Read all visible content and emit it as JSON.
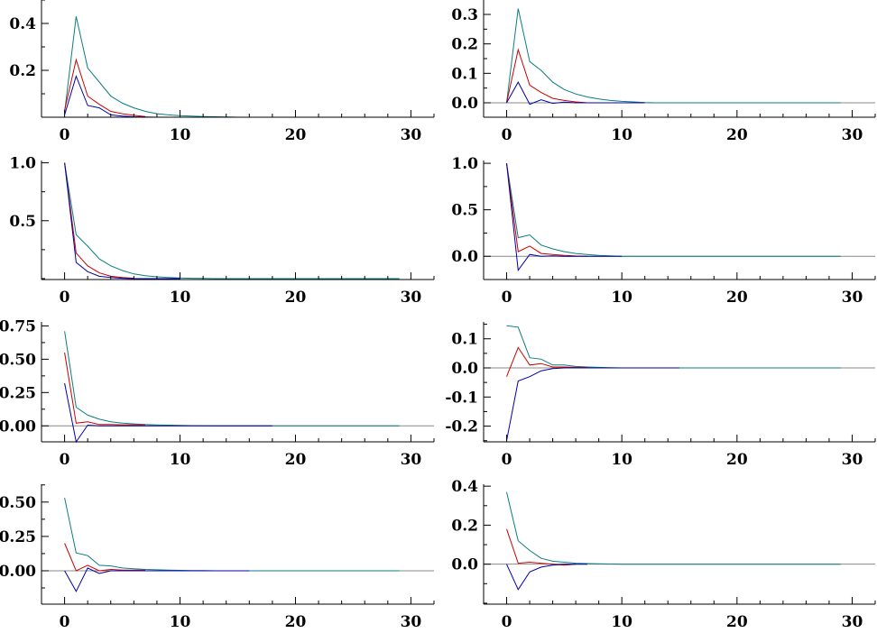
{
  "chart_data": [
    {
      "type": "line",
      "xlim": [
        -2,
        32
      ],
      "ylim": [
        0.0,
        0.5
      ],
      "xticks": [
        0,
        10,
        20,
        30
      ],
      "yticks": [
        0.2,
        0.4
      ],
      "ytick_labels": [
        "0.2",
        "0.4"
      ],
      "zero_line": false,
      "series": [
        {
          "name": "teal",
          "color": "#0a7d7d",
          "values": [
            0.02,
            0.43,
            0.21,
            0.15,
            0.09,
            0.06,
            0.04,
            0.025,
            0.015,
            0.01,
            0.007,
            0.005,
            0.003,
            0.002,
            0.001,
            0,
            0,
            0,
            0,
            0,
            0,
            0,
            0,
            0,
            0,
            0,
            0,
            0,
            0,
            0
          ]
        },
        {
          "name": "red",
          "color": "#cc0000",
          "values": [
            0.03,
            0.245,
            0.09,
            0.055,
            0.025,
            0.015,
            0.008,
            0.003
          ]
        },
        {
          "name": "blue",
          "color": "#0000aa",
          "values": [
            0.01,
            0.175,
            0.05,
            0.04,
            0.01,
            0.005,
            0.002,
            0.001,
            0,
            0,
            0,
            0,
            0,
            0,
            0,
            0
          ]
        }
      ]
    },
    {
      "type": "line",
      "xlim": [
        -2,
        32
      ],
      "ylim": [
        -0.049,
        0.349
      ],
      "xticks": [
        0,
        10,
        20,
        30
      ],
      "yticks": [
        0.0,
        0.1,
        0.2,
        0.3
      ],
      "ytick_labels": [
        "0.0",
        "0.1",
        "0.2",
        "0.3"
      ],
      "zero_line": true,
      "series": [
        {
          "name": "teal",
          "color": "#0a7d7d",
          "values": [
            0,
            0.32,
            0.14,
            0.11,
            0.07,
            0.045,
            0.03,
            0.02,
            0.013,
            0.008,
            0.005,
            0.003,
            0.001,
            0,
            0,
            0,
            0,
            0,
            0,
            0,
            0,
            0,
            0,
            0,
            0,
            0,
            0,
            0,
            0,
            0
          ]
        },
        {
          "name": "red",
          "color": "#cc0000",
          "values": [
            0,
            0.18,
            0.06,
            0.035,
            0.015,
            0.008,
            0.003,
            0
          ]
        },
        {
          "name": "blue",
          "color": "#0000aa",
          "values": [
            0,
            0.07,
            -0.005,
            0.01,
            -0.002,
            0.002,
            0,
            0,
            0,
            0,
            0,
            0,
            0
          ]
        }
      ]
    },
    {
      "type": "line",
      "xlim": [
        -2,
        32
      ],
      "ylim": [
        -0.008,
        1.02
      ],
      "xticks": [
        0,
        10,
        20,
        30
      ],
      "yticks": [
        0.5,
        1.0
      ],
      "ytick_labels": [
        "0.5",
        "1.0"
      ],
      "zero_line": false,
      "series": [
        {
          "name": "teal",
          "color": "#0a7d7d",
          "values": [
            1.0,
            0.38,
            0.28,
            0.17,
            0.11,
            0.07,
            0.04,
            0.025,
            0.015,
            0.01,
            0.005,
            0.003,
            0.001,
            0,
            0,
            0,
            0,
            0,
            0,
            0,
            0,
            0,
            0,
            0,
            0,
            0,
            0,
            0,
            0,
            0
          ]
        },
        {
          "name": "red",
          "color": "#cc0000",
          "values": [
            1.0,
            0.22,
            0.11,
            0.05,
            0.02,
            0.01,
            0.003
          ]
        },
        {
          "name": "blue",
          "color": "#0000aa",
          "values": [
            1.0,
            0.14,
            0.06,
            0.02,
            0.01,
            0.003,
            0,
            0,
            0,
            0,
            0
          ]
        }
      ]
    },
    {
      "type": "line",
      "xlim": [
        -2,
        32
      ],
      "ylim": [
        -0.25,
        1.03
      ],
      "xticks": [
        0,
        10,
        20,
        30
      ],
      "yticks": [
        0.0,
        0.5,
        1.0
      ],
      "ytick_labels": [
        "0.0",
        "0.5",
        "1.0"
      ],
      "zero_line": true,
      "series": [
        {
          "name": "teal",
          "color": "#0a7d7d",
          "values": [
            1.0,
            0.2,
            0.23,
            0.12,
            0.08,
            0.05,
            0.03,
            0.02,
            0.01,
            0.005,
            0,
            0,
            0,
            0,
            0,
            0,
            0,
            0,
            0,
            0,
            0,
            0,
            0,
            0,
            0,
            0,
            0,
            0,
            0,
            0
          ]
        },
        {
          "name": "red",
          "color": "#cc0000",
          "values": [
            1.0,
            0.05,
            0.11,
            0.03,
            0.02,
            0.01,
            0.003,
            0
          ]
        },
        {
          "name": "blue",
          "color": "#0000aa",
          "values": [
            1.0,
            -0.15,
            0.02,
            0.0,
            0.005,
            0,
            0,
            0,
            0,
            0,
            0
          ]
        }
      ]
    },
    {
      "type": "line",
      "xlim": [
        -2,
        32
      ],
      "ylim": [
        -0.12,
        0.78
      ],
      "xticks": [
        0,
        10,
        20,
        30
      ],
      "yticks": [
        0.0,
        0.25,
        0.5,
        0.75
      ],
      "ytick_labels": [
        "0.00",
        "0.25",
        "0.50",
        "0.75"
      ],
      "zero_line": true,
      "series": [
        {
          "name": "teal",
          "color": "#0a7d7d",
          "values": [
            0.71,
            0.14,
            0.08,
            0.05,
            0.03,
            0.02,
            0.015,
            0.01,
            0.007,
            0.005,
            0.003,
            0.002,
            0.001,
            0,
            0,
            0,
            0,
            0,
            0,
            0,
            0,
            0,
            0,
            0,
            0,
            0,
            0,
            0,
            0,
            0
          ]
        },
        {
          "name": "red",
          "color": "#cc0000",
          "values": [
            0.55,
            0.02,
            0.03,
            0.01,
            0.01,
            0.008,
            0.008,
            0.008
          ]
        },
        {
          "name": "blue",
          "color": "#0000aa",
          "values": [
            0.32,
            -0.12,
            0.005,
            0,
            0,
            0,
            0,
            0,
            0,
            0,
            0,
            0,
            0,
            0,
            0,
            0,
            0,
            0,
            0
          ]
        }
      ]
    },
    {
      "type": "line",
      "xlim": [
        -2,
        32
      ],
      "ylim": [
        -0.254,
        0.158
      ],
      "xticks": [
        0,
        10,
        20,
        30
      ],
      "yticks": [
        -0.2,
        -0.1,
        0.0,
        0.1
      ],
      "ytick_labels": [
        "-0.2",
        "-0.1",
        "0.0",
        "0.1"
      ],
      "zero_line": true,
      "series": [
        {
          "name": "teal",
          "color": "#0a7d7d",
          "values": [
            0.145,
            0.14,
            0.035,
            0.03,
            0.01,
            0.01,
            0.005,
            0.003,
            0.002,
            0.001,
            0,
            0,
            0,
            0,
            0,
            0,
            0,
            0,
            0,
            0,
            0,
            0,
            0,
            0,
            0,
            0,
            0,
            0,
            0,
            0
          ]
        },
        {
          "name": "red",
          "color": "#cc0000",
          "values": [
            -0.03,
            0.07,
            0.01,
            0.015,
            0.003,
            0.003,
            0.002,
            0.002
          ]
        },
        {
          "name": "blue",
          "color": "#0000aa",
          "values": [
            -0.25,
            -0.045,
            -0.03,
            -0.01,
            -0.002,
            0,
            0,
            0,
            0,
            0,
            0,
            0,
            0,
            0,
            0,
            0
          ]
        }
      ]
    },
    {
      "type": "line",
      "xlim": [
        -2,
        32
      ],
      "ylim": [
        -0.243,
        0.63
      ],
      "xticks": [
        0,
        10,
        20,
        30
      ],
      "yticks": [
        0.0,
        0.25,
        0.5
      ],
      "ytick_labels": [
        "0.00",
        "0.25",
        "0.50"
      ],
      "zero_line": true,
      "series": [
        {
          "name": "teal",
          "color": "#0a7d7d",
          "values": [
            0.53,
            0.13,
            0.11,
            0.04,
            0.035,
            0.02,
            0.015,
            0.01,
            0.007,
            0.005,
            0.003,
            0.002,
            0.001,
            0,
            0,
            0,
            0,
            0,
            0,
            0,
            0,
            0,
            0,
            0,
            0,
            0,
            0,
            0,
            0,
            0
          ]
        },
        {
          "name": "red",
          "color": "#cc0000",
          "values": [
            0.2,
            0,
            0.04,
            0,
            0.01,
            0.005,
            0.005,
            0.005
          ]
        },
        {
          "name": "blue",
          "color": "#0000aa",
          "values": [
            0,
            -0.15,
            0.02,
            -0.02,
            0,
            0,
            0,
            0,
            0,
            0,
            0,
            0,
            0,
            0,
            0,
            0,
            0
          ]
        }
      ]
    },
    {
      "type": "line",
      "xlim": [
        -2,
        32
      ],
      "ylim": [
        -0.205,
        0.41
      ],
      "xticks": [
        0,
        10,
        20,
        30
      ],
      "yticks": [
        0.0,
        0.2,
        0.4
      ],
      "ytick_labels": [
        "0.0",
        "0.2",
        "0.4"
      ],
      "zero_line": true,
      "series": [
        {
          "name": "teal",
          "color": "#0a7d7d",
          "values": [
            0.37,
            0.12,
            0.07,
            0.03,
            0.015,
            0.01,
            0.005,
            0.003,
            0.002,
            0.001,
            0,
            0,
            0,
            0,
            0,
            0,
            0,
            0,
            0,
            0,
            0,
            0,
            0,
            0,
            0,
            0,
            0,
            0,
            0,
            0
          ]
        },
        {
          "name": "red",
          "color": "#cc0000",
          "values": [
            0.18,
            0.005,
            0.01,
            0.005,
            0,
            -0.005,
            0
          ]
        },
        {
          "name": "blue",
          "color": "#0000aa",
          "values": [
            0,
            -0.13,
            -0.04,
            -0.015,
            -0.005,
            0,
            0,
            0
          ]
        }
      ]
    }
  ]
}
